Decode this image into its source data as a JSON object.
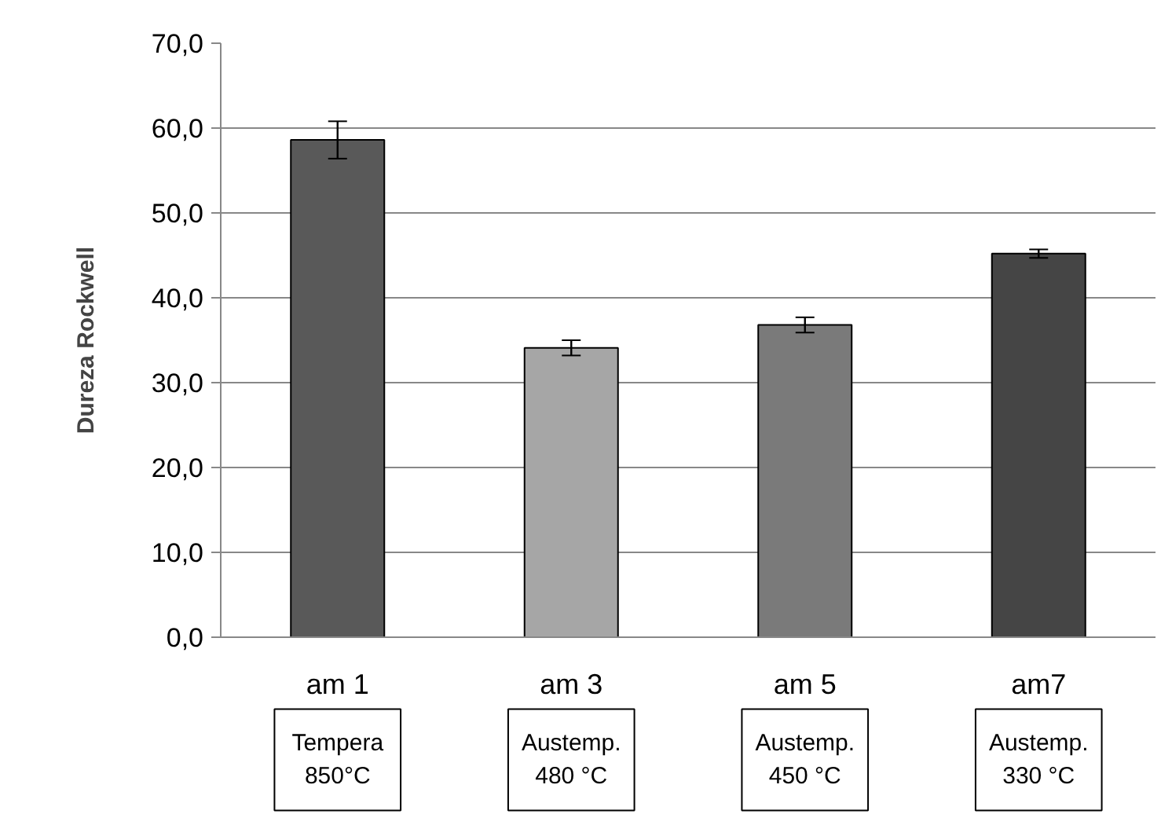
{
  "chart_data": {
    "type": "bar",
    "ylabel": "Dureza Rockwell",
    "categories": [
      "am 1",
      "am 3",
      "am 5",
      "am7"
    ],
    "values": [
      58.6,
      34.1,
      36.8,
      45.2
    ],
    "errors": [
      2.2,
      0.9,
      0.9,
      0.5
    ],
    "colors": [
      "#595959",
      "#a6a6a6",
      "#7a7a7a",
      "#454545"
    ],
    "ylim": [
      0,
      70
    ],
    "yticks": [
      {
        "value": 0,
        "label": "0,0"
      },
      {
        "value": 10,
        "label": "10,0"
      },
      {
        "value": 20,
        "label": "20,0"
      },
      {
        "value": 30,
        "label": "30,0"
      },
      {
        "value": 40,
        "label": "40,0"
      },
      {
        "value": 50,
        "label": "50,0"
      },
      {
        "value": 60,
        "label": "60,0"
      },
      {
        "value": 70,
        "label": "70,0"
      }
    ],
    "grid": "y",
    "annotations": [
      "Tempera\n850°C",
      "Austemp.\n480 °C",
      "Austemp.\n450 °C",
      "Austemp.\n330 °C"
    ]
  }
}
